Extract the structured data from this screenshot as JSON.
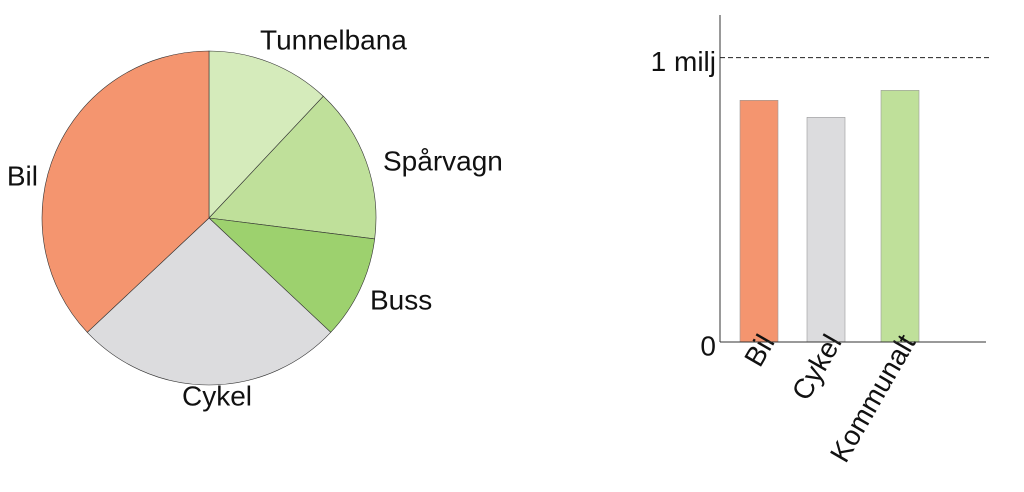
{
  "chart_data": [
    {
      "type": "pie",
      "categories": [
        "Tunnelbana",
        "Spårvagn",
        "Buss",
        "Cykel",
        "Bil"
      ],
      "values": [
        12,
        15,
        10,
        26,
        37
      ],
      "colors": [
        "#d5ebbb",
        "#bfe09a",
        "#9dd16e",
        "#dcdcde",
        "#f4956f"
      ]
    },
    {
      "type": "bar",
      "categories": [
        "Bil",
        "Cykel",
        "Kommunalt"
      ],
      "values": [
        850000,
        790000,
        885000
      ],
      "colors": [
        "#f4956f",
        "#dcdcde",
        "#bfe09a"
      ],
      "ylim": [
        0,
        1150000
      ],
      "yticks": [
        0,
        {
          "value": 1000000,
          "label": "1 milj"
        }
      ],
      "grid": true
    }
  ]
}
